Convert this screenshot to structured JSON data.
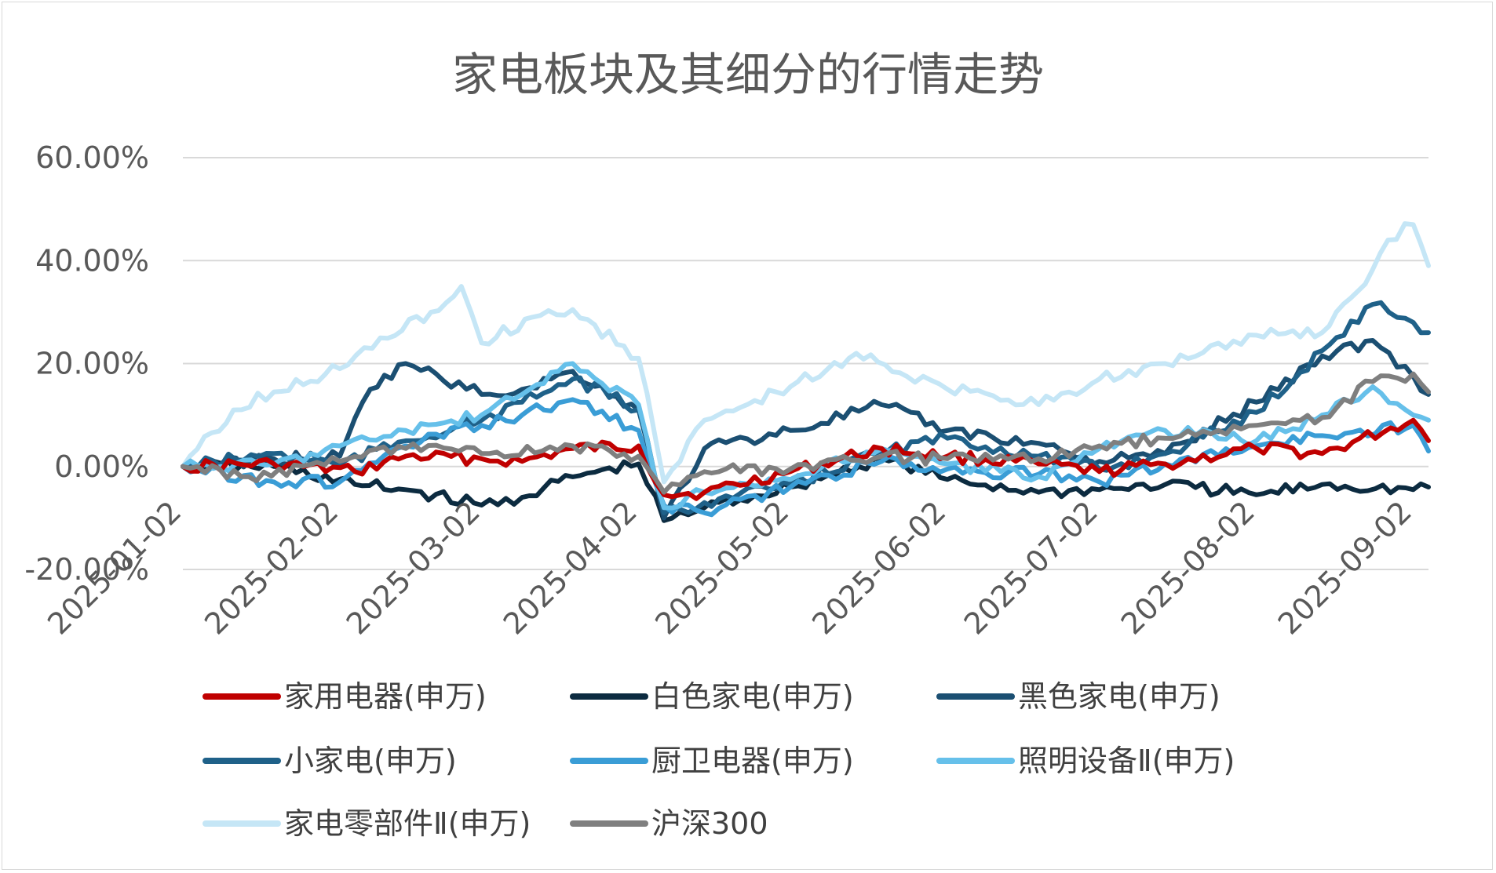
{
  "chart_data": {
    "type": "line",
    "title": "家电板块及其细分的行情走势",
    "xlabel": "",
    "ylabel": "",
    "x_ticks": [
      "2025-01-02",
      "2025-02-02",
      "2025-03-02",
      "2025-04-02",
      "2025-05-02",
      "2025-06-02",
      "2025-07-02",
      "2025-08-02",
      "2025-09-02"
    ],
    "y_ticks": [
      "60.00%",
      "40.00%",
      "20.00%",
      "0.00%",
      "-20.00%"
    ],
    "ylim": [
      -20,
      60
    ],
    "grid": "horizontal",
    "legend_position": "bottom",
    "x_unit": "date",
    "y_unit": "percent",
    "series": [
      {
        "name": "家用电器(申万)",
        "color": "#c00000",
        "x": [
          "2025-01-02",
          "2025-01-20",
          "2025-02-05",
          "2025-02-15",
          "2025-03-02",
          "2025-03-10",
          "2025-03-20",
          "2025-04-02",
          "2025-04-07",
          "2025-04-15",
          "2025-05-02",
          "2025-05-20",
          "2025-06-02",
          "2025-06-20",
          "2025-07-02",
          "2025-07-15",
          "2025-08-02",
          "2025-08-15",
          "2025-09-02",
          "2025-09-05"
        ],
        "values": [
          0.0,
          0.5,
          -1.0,
          2.0,
          1.5,
          1.0,
          3.5,
          4.0,
          -5.5,
          -5.0,
          -1.0,
          3.5,
          2.0,
          0.5,
          -1.0,
          0.5,
          3.5,
          2.5,
          9.0,
          5.0
        ]
      },
      {
        "name": "白色家电(申万)",
        "color": "#0c2b40",
        "x": [
          "2025-01-02",
          "2025-01-20",
          "2025-02-05",
          "2025-02-15",
          "2025-03-02",
          "2025-03-10",
          "2025-03-20",
          "2025-04-02",
          "2025-04-07",
          "2025-04-15",
          "2025-05-02",
          "2025-05-20",
          "2025-06-02",
          "2025-06-20",
          "2025-07-02",
          "2025-07-15",
          "2025-08-02",
          "2025-08-15",
          "2025-09-02",
          "2025-09-05"
        ],
        "values": [
          0.0,
          0.0,
          -3.5,
          -4.5,
          -7.5,
          -6.0,
          -2.0,
          0.5,
          -10.5,
          -8.0,
          -4.0,
          1.5,
          -2.5,
          -5.0,
          -4.5,
          -3.5,
          -5.5,
          -3.5,
          -4.5,
          -4.0
        ]
      },
      {
        "name": "黑色家电(申万)",
        "color": "#1b4f72",
        "x": [
          "2025-01-02",
          "2025-01-20",
          "2025-02-02",
          "2025-02-08",
          "2025-02-15",
          "2025-03-02",
          "2025-03-10",
          "2025-03-20",
          "2025-04-02",
          "2025-04-07",
          "2025-04-15",
          "2025-05-02",
          "2025-05-20",
          "2025-06-02",
          "2025-06-20",
          "2025-07-02",
          "2025-07-15",
          "2025-08-02",
          "2025-08-15",
          "2025-08-25",
          "2025-09-02",
          "2025-09-05"
        ],
        "values": [
          0.0,
          1.5,
          2.0,
          15.0,
          20.0,
          14.0,
          15.0,
          18.5,
          11.0,
          -10.0,
          3.5,
          7.0,
          12.0,
          7.0,
          4.5,
          1.0,
          2.5,
          12.5,
          21.5,
          24.5,
          17.5,
          14.0
        ]
      },
      {
        "name": "小家电(申万)",
        "color": "#1f6189",
        "x": [
          "2025-01-02",
          "2025-01-20",
          "2025-02-02",
          "2025-02-15",
          "2025-03-02",
          "2025-03-10",
          "2025-03-20",
          "2025-04-02",
          "2025-04-07",
          "2025-04-15",
          "2025-05-02",
          "2025-05-20",
          "2025-06-02",
          "2025-06-20",
          "2025-07-02",
          "2025-07-15",
          "2025-08-02",
          "2025-08-15",
          "2025-08-25",
          "2025-09-02",
          "2025-09-05"
        ],
        "values": [
          0.0,
          2.5,
          0.5,
          5.0,
          9.0,
          12.5,
          17.0,
          11.0,
          -9.0,
          -7.0,
          -3.5,
          3.0,
          5.5,
          2.0,
          -0.5,
          2.5,
          10.5,
          22.5,
          31.5,
          28.0,
          26.0
        ]
      },
      {
        "name": "厨卫电器(申万)",
        "color": "#3a9dd6",
        "x": [
          "2025-01-02",
          "2025-01-20",
          "2025-02-02",
          "2025-02-15",
          "2025-03-02",
          "2025-03-10",
          "2025-03-20",
          "2025-04-02",
          "2025-04-07",
          "2025-04-15",
          "2025-05-02",
          "2025-05-20",
          "2025-06-02",
          "2025-06-20",
          "2025-07-02",
          "2025-07-15",
          "2025-08-02",
          "2025-08-15",
          "2025-09-02",
          "2025-09-05"
        ],
        "values": [
          0.0,
          -3.0,
          -3.0,
          4.0,
          8.0,
          10.0,
          13.0,
          7.0,
          -7.5,
          -9.0,
          -4.0,
          1.0,
          -0.5,
          -1.5,
          -3.0,
          0.5,
          4.0,
          6.0,
          8.0,
          3.0
        ]
      },
      {
        "name": "照明设备Ⅱ(申万)",
        "color": "#66c0ea",
        "x": [
          "2025-01-02",
          "2025-01-20",
          "2025-02-02",
          "2025-02-15",
          "2025-03-02",
          "2025-03-10",
          "2025-03-20",
          "2025-04-02",
          "2025-04-07",
          "2025-04-15",
          "2025-05-02",
          "2025-05-20",
          "2025-06-02",
          "2025-06-20",
          "2025-07-02",
          "2025-07-15",
          "2025-08-02",
          "2025-08-15",
          "2025-08-25",
          "2025-09-02",
          "2025-09-05"
        ],
        "values": [
          0.0,
          0.5,
          4.0,
          7.0,
          10.0,
          14.0,
          20.0,
          12.0,
          -8.0,
          -5.0,
          -2.5,
          3.5,
          0.5,
          -2.0,
          3.5,
          7.0,
          5.0,
          10.0,
          15.5,
          10.0,
          9.0
        ]
      },
      {
        "name": "家电零部件Ⅱ(申万)",
        "color": "#c5e6f6",
        "x": [
          "2025-01-02",
          "2025-01-12",
          "2025-01-20",
          "2025-02-02",
          "2025-02-10",
          "2025-02-20",
          "2025-02-26",
          "2025-03-02",
          "2025-03-12",
          "2025-03-20",
          "2025-04-02",
          "2025-04-07",
          "2025-04-15",
          "2025-05-02",
          "2025-05-15",
          "2025-05-25",
          "2025-06-02",
          "2025-06-20",
          "2025-07-02",
          "2025-07-15",
          "2025-08-02",
          "2025-08-15",
          "2025-08-22",
          "2025-08-28",
          "2025-09-02",
          "2025-09-05"
        ],
        "values": [
          0.0,
          11.0,
          14.5,
          19.0,
          25.0,
          30.0,
          35.0,
          24.0,
          29.0,
          30.5,
          21.0,
          -3.0,
          9.0,
          15.5,
          22.0,
          17.5,
          15.0,
          12.0,
          17.0,
          20.0,
          25.5,
          26.0,
          34.0,
          44.0,
          47.0,
          39.0
        ]
      },
      {
        "name": "沪深300",
        "color": "#7f7f7f",
        "x": [
          "2025-01-02",
          "2025-01-15",
          "2025-02-02",
          "2025-02-15",
          "2025-03-02",
          "2025-03-20",
          "2025-04-02",
          "2025-04-07",
          "2025-04-15",
          "2025-05-02",
          "2025-05-20",
          "2025-06-02",
          "2025-06-20",
          "2025-07-02",
          "2025-07-15",
          "2025-08-02",
          "2025-08-15",
          "2025-08-25",
          "2025-09-02",
          "2025-09-05"
        ],
        "values": [
          0.0,
          -2.0,
          1.0,
          3.5,
          2.5,
          4.0,
          2.0,
          -5.0,
          -1.0,
          -0.5,
          2.0,
          1.5,
          1.5,
          4.0,
          5.5,
          8.0,
          9.5,
          16.5,
          18.0,
          14.5
        ]
      }
    ]
  }
}
